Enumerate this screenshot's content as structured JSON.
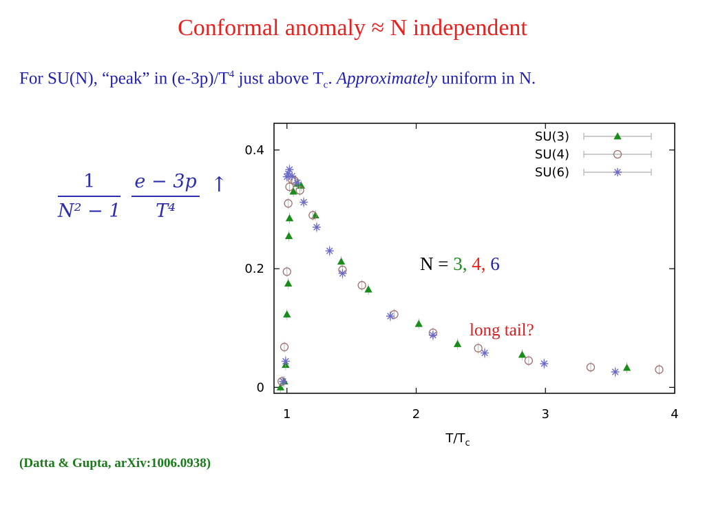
{
  "slide": {
    "title": "Conformal anomaly ≈ N independent",
    "subtitle_part1": "For SU(N), “peak” in (e-3p)/T",
    "subtitle_sup": "4",
    "subtitle_part2": " just above T",
    "subtitle_sub": "c",
    "subtitle_part3": ".  ",
    "subtitle_italic": "Approximately",
    "subtitle_part4": " uniform in N.",
    "formula": {
      "frac1_num": "1",
      "frac1_den": "N² − 1",
      "frac2_num": "e − 3p",
      "frac2_den": "T⁴",
      "arrow": "↑"
    },
    "citation": "(Datta & Gupta, arXiv:1006.0938)"
  },
  "chart_data": {
    "type": "scatter",
    "xlabel": "T/T",
    "xlabel_sub": "c",
    "ylabel": "",
    "xlim": [
      0.9,
      4.0
    ],
    "ylim": [
      -0.01,
      0.445
    ],
    "xticks": [
      1,
      2,
      3,
      4
    ],
    "yticks": [
      0,
      0.2,
      0.4
    ],
    "ytick_labels": [
      "0",
      "0.2",
      "0.4"
    ],
    "grid": false,
    "legend": "top-right",
    "series": [
      {
        "name": "SU(3)",
        "marker": "triangle",
        "color": "#1a8c1a",
        "points": [
          [
            0.95,
            0.0
          ],
          [
            0.98,
            0.01
          ],
          [
            0.99,
            0.038
          ],
          [
            1.0,
            0.123
          ],
          [
            1.01,
            0.175
          ],
          [
            1.015,
            0.255
          ],
          [
            1.02,
            0.285
          ],
          [
            1.05,
            0.33
          ],
          [
            1.08,
            0.343
          ],
          [
            1.11,
            0.34
          ],
          [
            1.22,
            0.29
          ],
          [
            1.42,
            0.212
          ],
          [
            1.63,
            0.165
          ],
          [
            2.02,
            0.107
          ],
          [
            2.32,
            0.073
          ],
          [
            2.82,
            0.055
          ],
          [
            3.63,
            0.033
          ]
        ]
      },
      {
        "name": "SU(4)",
        "marker": "circle",
        "color": "#a07070",
        "points": [
          [
            0.96,
            0.01
          ],
          [
            0.98,
            0.068
          ],
          [
            1.0,
            0.195
          ],
          [
            1.01,
            0.31
          ],
          [
            1.02,
            0.338
          ],
          [
            1.04,
            0.35
          ],
          [
            1.06,
            0.348
          ],
          [
            1.1,
            0.332
          ],
          [
            1.2,
            0.29
          ],
          [
            1.43,
            0.198
          ],
          [
            1.58,
            0.172
          ],
          [
            1.83,
            0.123
          ],
          [
            2.13,
            0.092
          ],
          [
            2.48,
            0.066
          ],
          [
            2.87,
            0.045
          ],
          [
            3.35,
            0.034
          ],
          [
            3.88,
            0.03
          ]
        ]
      },
      {
        "name": "SU(6)",
        "marker": "star",
        "color": "#6a6ac8",
        "points": [
          [
            0.97,
            0.01
          ],
          [
            0.99,
            0.044
          ],
          [
            1.0,
            0.355
          ],
          [
            1.01,
            0.36
          ],
          [
            1.02,
            0.367
          ],
          [
            1.04,
            0.356
          ],
          [
            1.08,
            0.345
          ],
          [
            1.13,
            0.312
          ],
          [
            1.23,
            0.27
          ],
          [
            1.33,
            0.23
          ],
          [
            1.43,
            0.192
          ],
          [
            1.8,
            0.12
          ],
          [
            2.13,
            0.088
          ],
          [
            2.53,
            0.058
          ],
          [
            2.99,
            0.04
          ],
          [
            3.54,
            0.026
          ]
        ]
      }
    ],
    "annotations": {
      "n_label": "N = ",
      "n3": "3",
      "comma1": ", ",
      "n4": "4",
      "comma2": ", ",
      "n6": "6",
      "tail": "long tail?"
    }
  }
}
